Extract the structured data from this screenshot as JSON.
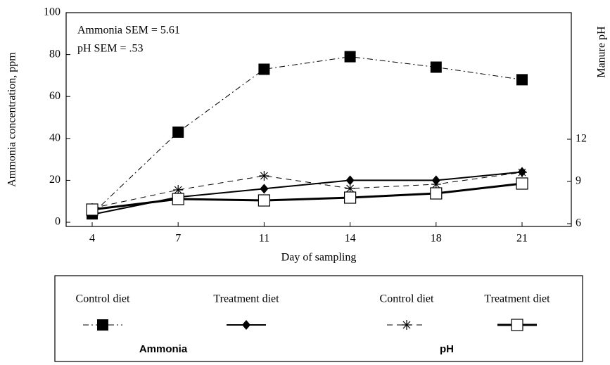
{
  "chart_data": {
    "type": "line",
    "annotations": [
      "Ammonia SEM = 5.61",
      "pH SEM = .53"
    ],
    "x_label": "Day of sampling",
    "y_label": "Ammonia concentration, ppm",
    "y2_label": "Manure pH",
    "categories": [
      "4",
      "7",
      "11",
      "14",
      "18",
      "21"
    ],
    "ylim": [
      -2,
      100
    ],
    "yticks": [
      0,
      20,
      40,
      60,
      80,
      100
    ],
    "y2lim": [
      5.8,
      21
    ],
    "y2ticks": [
      6,
      9,
      12
    ],
    "legend_groups": [
      "Ammonia",
      "pH"
    ],
    "series": [
      {
        "name": "Control diet",
        "color": "#000000",
        "dash": "dashdot",
        "marker": "square",
        "group": 0,
        "values": [
          4,
          43,
          73,
          79,
          74,
          68
        ]
      },
      {
        "name": "Treatment diet",
        "color": "#000000",
        "dash": "solid",
        "marker": "diamond",
        "group": 0,
        "values": [
          3.7,
          12,
          16,
          20,
          20,
          24
        ]
      },
      {
        "name": "Control diet",
        "color": "#000000",
        "dash": "dashed",
        "marker": "star",
        "group": 1,
        "axis": "y2",
        "values": [
          7.1,
          8.4,
          9.4,
          8.5,
          8.8,
          9.65
        ]
      },
      {
        "name": "Treatment diet",
        "color": "#000000",
        "dash": "thick",
        "marker": "open-square",
        "group": 1,
        "axis": "y2",
        "values": [
          7.0,
          7.75,
          7.65,
          7.85,
          8.15,
          8.85
        ]
      }
    ]
  }
}
